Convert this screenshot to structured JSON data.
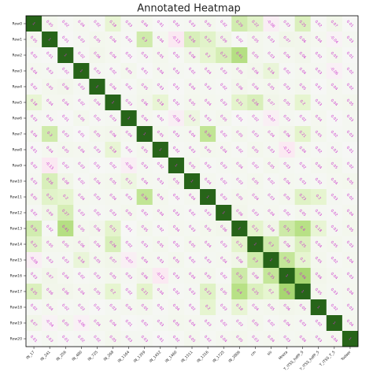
{
  "chart_data": {
    "type": "heatmap",
    "title": "Annotated Heatmap",
    "rows": [
      "Row0",
      "Row1",
      "Row2",
      "Row3",
      "Row4",
      "Row5",
      "Row6",
      "Row7",
      "Row8",
      "Row9",
      "Row10",
      "Row11",
      "Row12",
      "Row13",
      "Row14",
      "Row15",
      "Row16",
      "Row17",
      "Row18",
      "Row19",
      "Row20"
    ],
    "columns": [
      "IN_17",
      "IN_241",
      "IN_256",
      "IN_480",
      "IN_725",
      "IN_268",
      "IN_1164",
      "IN_1359",
      "IN_1452",
      "IN_1460",
      "IN_1511",
      "IN_1316",
      "IN_1725",
      "IN_2806",
      "cm",
      "sis",
      "Mreza",
      "T_ITSS_hdfP_S",
      "Y_ITSS_hdfP_5",
      "T_ITSS_T_5",
      "Yodaer"
    ],
    "colormap": "PiYG",
    "vlim": [
      -1,
      1
    ],
    "annotation_color": "#cc33cc",
    "values": [
      [
        1,
        0.05,
        0.02,
        0.04,
        0.02,
        0.18,
        0.03,
        0.04,
        0.01,
        0.02,
        0.03,
        0.05,
        0.02,
        0.29,
        0.22,
        -0.08,
        0.03,
        0.25,
        0.02,
        0.07,
        0.01
      ],
      [
        0.05,
        1,
        0.01,
        0.03,
        0.05,
        0.04,
        0.02,
        0.3,
        0.04,
        -0.13,
        0.26,
        0.22,
        0.09,
        0.02,
        0.05,
        0.03,
        0.07,
        0.06,
        0.04,
        -0.04,
        0.03
      ],
      [
        0.02,
        0.01,
        1,
        0.02,
        0.06,
        0.04,
        0.01,
        0.03,
        0.05,
        0.02,
        0.08,
        0.2,
        0.27,
        0.41,
        0.05,
        0.03,
        0.04,
        0.06,
        0.02,
        0.05,
        0.01
      ],
      [
        0.04,
        0.03,
        0.02,
        1,
        0.03,
        0.02,
        0.05,
        0.01,
        0.04,
        0.03,
        0.02,
        0.04,
        0.03,
        0.05,
        0.06,
        0.16,
        0.02,
        0.04,
        0.03,
        -0.06,
        0.02
      ],
      [
        0.02,
        0.05,
        0.06,
        0.03,
        1,
        0.04,
        0.02,
        0.05,
        0.03,
        0.01,
        0.04,
        0.03,
        0.02,
        0.06,
        0.04,
        0.05,
        0.03,
        0.05,
        0.01,
        0.04,
        0.02
      ],
      [
        0.18,
        0.04,
        0.04,
        0.02,
        0.04,
        1,
        0.03,
        0.06,
        0.18,
        0.02,
        0.05,
        0.04,
        0.03,
        0.21,
        0.26,
        0.07,
        0.05,
        0.2,
        0.03,
        0.04,
        0.05
      ],
      [
        0.03,
        0.02,
        0.01,
        0.05,
        0.02,
        0.03,
        1,
        0.04,
        0.02,
        -0.08,
        0.12,
        0.03,
        0.05,
        0.01,
        0.02,
        -0.07,
        0.03,
        0.02,
        0.04,
        0.01,
        0.03
      ],
      [
        0.04,
        0.3,
        0.03,
        0.01,
        0.05,
        0.06,
        0.04,
        1,
        0.05,
        0.03,
        0.04,
        0.36,
        0.02,
        0.05,
        0.03,
        0.04,
        0.06,
        0.21,
        0.05,
        0.02,
        0.03
      ],
      [
        0.01,
        0.04,
        0.05,
        0.04,
        0.03,
        0.18,
        0.02,
        0.05,
        1,
        0.02,
        0.03,
        0.05,
        0.04,
        0.02,
        0.05,
        0.03,
        -0.12,
        0.04,
        0.02,
        0.03,
        0.01
      ],
      [
        0.02,
        -0.13,
        0.02,
        0.03,
        0.01,
        0.02,
        -0.08,
        0.03,
        0.02,
        1,
        0.05,
        0.02,
        0.03,
        0.04,
        0.02,
        0.05,
        0.03,
        0.02,
        0.04,
        0.05,
        0.02
      ],
      [
        0.03,
        0.26,
        0.08,
        0.02,
        0.04,
        0.05,
        0.12,
        0.04,
        0.03,
        0.05,
        1,
        0.04,
        0.02,
        0.03,
        0.05,
        0.02,
        0.04,
        0.03,
        0.02,
        0.04,
        0.05
      ],
      [
        0.05,
        0.22,
        0.2,
        0.04,
        0.03,
        0.04,
        0.03,
        0.36,
        0.05,
        0.02,
        0.04,
        1,
        0.03,
        0.05,
        0.04,
        0.03,
        0.05,
        0.23,
        0.2,
        0.03,
        0.02
      ],
      [
        0.02,
        0.09,
        0.27,
        0.03,
        0.02,
        0.03,
        0.05,
        0.02,
        0.04,
        0.03,
        0.02,
        0.03,
        1,
        0.06,
        0.03,
        0.04,
        0.02,
        0.05,
        0.03,
        0.02,
        0.04
      ],
      [
        0.29,
        0.02,
        0.41,
        0.05,
        0.06,
        0.21,
        0.01,
        0.05,
        0.02,
        0.04,
        0.03,
        0.05,
        0.06,
        1,
        0.21,
        0.08,
        0.31,
        0.4,
        0.18,
        0.03,
        0.05
      ],
      [
        0.22,
        0.05,
        0.05,
        0.06,
        0.04,
        0.26,
        0.02,
        0.03,
        0.05,
        0.02,
        0.05,
        0.04,
        0.03,
        0.21,
        1,
        0.3,
        0.08,
        0.25,
        0.04,
        0.05,
        0.03
      ],
      [
        -0.08,
        0.03,
        0.03,
        0.16,
        0.05,
        0.07,
        -0.07,
        0.04,
        0.03,
        0.05,
        0.02,
        0.03,
        0.04,
        0.08,
        0.3,
        1,
        0.35,
        0.2,
        0.05,
        0.02,
        0.04
      ],
      [
        0.03,
        0.07,
        0.04,
        0.02,
        0.03,
        0.05,
        0.03,
        0.06,
        -0.12,
        0.03,
        0.04,
        0.05,
        0.02,
        0.31,
        0.08,
        0.35,
        1,
        0.46,
        0.06,
        0.04,
        0.03
      ],
      [
        0.25,
        0.06,
        0.06,
        0.04,
        0.05,
        0.2,
        0.02,
        0.21,
        0.04,
        0.02,
        0.03,
        0.23,
        0.05,
        0.4,
        0.25,
        0.2,
        0.46,
        1,
        0.05,
        0.03,
        0.04
      ],
      [
        0.02,
        0.04,
        0.02,
        0.03,
        0.01,
        0.03,
        0.04,
        0.05,
        0.02,
        0.04,
        0.02,
        0.2,
        0.03,
        0.18,
        0.04,
        0.05,
        0.06,
        0.05,
        1,
        0.02,
        0.03
      ],
      [
        0.07,
        -0.04,
        0.05,
        -0.06,
        0.04,
        0.04,
        0.01,
        0.02,
        0.03,
        0.05,
        0.04,
        0.03,
        0.02,
        0.03,
        0.05,
        0.02,
        0.04,
        0.03,
        0.02,
        1,
        0.04
      ],
      [
        0.01,
        0.03,
        0.01,
        0.02,
        0.02,
        0.05,
        0.03,
        0.03,
        0.01,
        0.02,
        0.05,
        0.02,
        0.04,
        0.05,
        0.03,
        0.04,
        0.03,
        0.04,
        0.03,
        0.04,
        1
      ]
    ]
  }
}
